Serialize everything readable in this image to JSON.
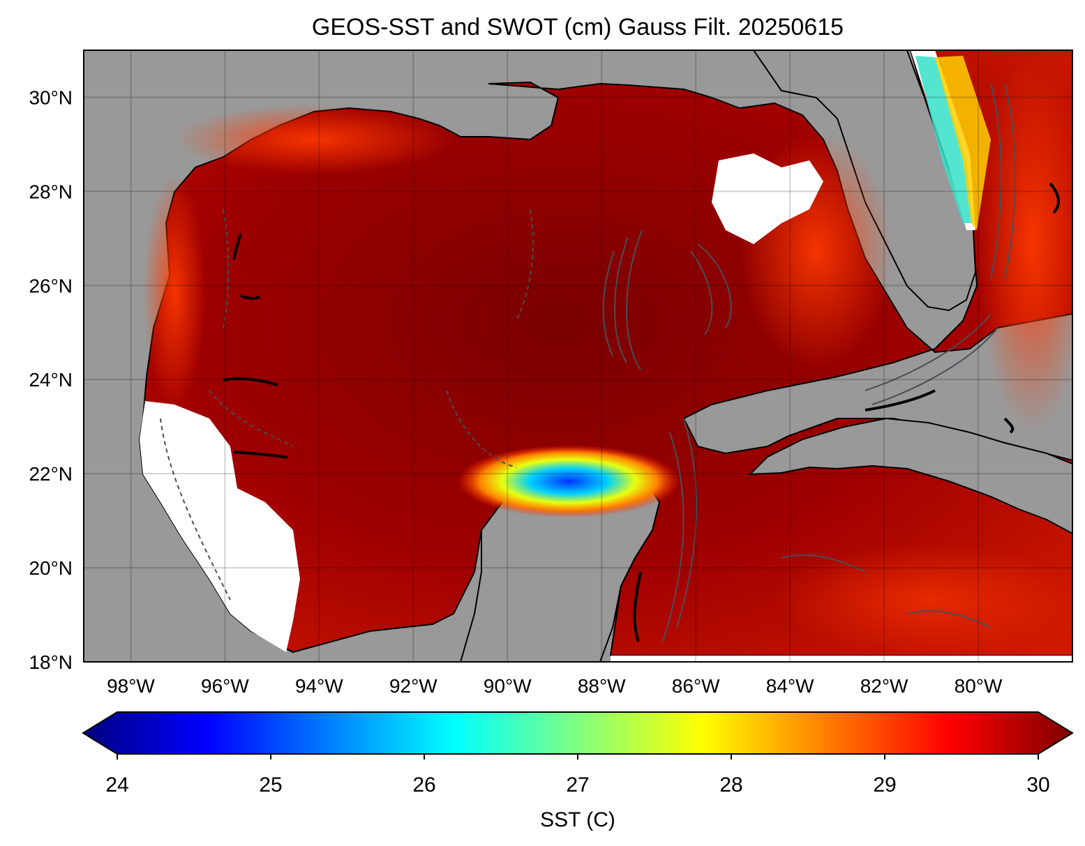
{
  "title": "GEOS-SST  and SWOT (cm) Gauss Filt. 20250615",
  "map": {
    "lon_range": [
      -99,
      -78.0
    ],
    "lat_range": [
      18,
      31
    ],
    "lat_ticks": [
      {
        "value": 30,
        "label": "30°N"
      },
      {
        "value": 28,
        "label": "28°N"
      },
      {
        "value": 26,
        "label": "26°N"
      },
      {
        "value": 24,
        "label": "24°N"
      },
      {
        "value": 22,
        "label": "22°N"
      },
      {
        "value": 20,
        "label": "20°N"
      },
      {
        "value": 18,
        "label": "18°N"
      }
    ],
    "lon_ticks": [
      {
        "value": -98,
        "label": "98°W"
      },
      {
        "value": -96,
        "label": "96°W"
      },
      {
        "value": -94,
        "label": "94°W"
      },
      {
        "value": -92,
        "label": "92°W"
      },
      {
        "value": -90,
        "label": "90°W"
      },
      {
        "value": -88,
        "label": "88°W"
      },
      {
        "value": -86,
        "label": "86°W"
      },
      {
        "value": -84,
        "label": "84°W"
      },
      {
        "value": -82,
        "label": "82°W"
      },
      {
        "value": -80,
        "label": "80°W"
      }
    ],
    "land_color": "#999999",
    "missing_color": "#ffffff",
    "gridlines": true,
    "contour_color": "#4a4f55"
  },
  "colorbar": {
    "label": "SST (C)",
    "range": [
      24,
      30
    ],
    "extend": "both",
    "colormap": "jet",
    "ticks": [
      {
        "value": 24,
        "label": "24"
      },
      {
        "value": 25,
        "label": "25"
      },
      {
        "value": 26,
        "label": "26"
      },
      {
        "value": 27,
        "label": "27"
      },
      {
        "value": 28,
        "label": "28"
      },
      {
        "value": 29,
        "label": "29"
      },
      {
        "value": 30,
        "label": "30"
      }
    ]
  }
}
